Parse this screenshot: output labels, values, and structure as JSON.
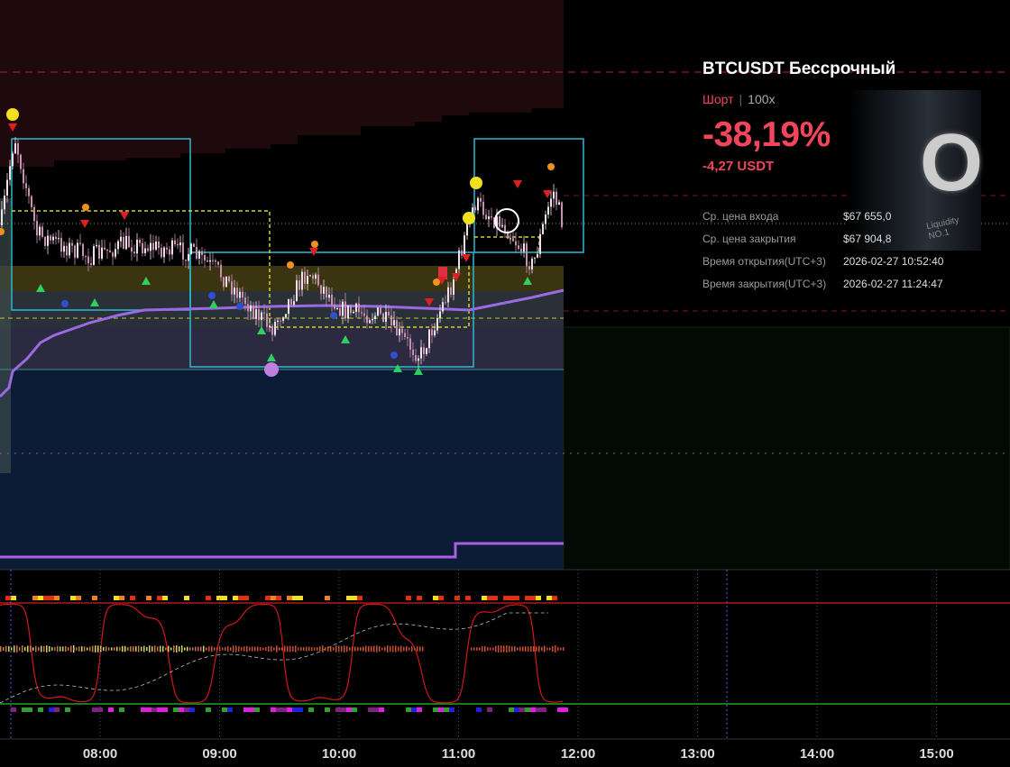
{
  "card": {
    "title": "BTCUSDT Бессрочный",
    "side": "Шорт",
    "leverage": "100x",
    "pnl_percent": "-38,19%",
    "pnl": "-4,27 USDT",
    "details": [
      {
        "label": "Ср. цена входа",
        "value": "$67 655,0"
      },
      {
        "label": "Ср. цена закрытия",
        "value": "$67 904,8"
      },
      {
        "label": "Время открытия(UTC+3)",
        "value": "2026-02-27 10:52:40"
      },
      {
        "label": "Время закрытия(UTC+3)",
        "value": "2026-02-27 11:24:47"
      }
    ]
  },
  "logo": {
    "mark": "O",
    "caption": "Liquidity NO.1"
  },
  "time_axis": {
    "labels": [
      "08:00",
      "09:00",
      "10:00",
      "11:00",
      "12:00",
      "13:00",
      "14:00",
      "15:00"
    ]
  }
}
